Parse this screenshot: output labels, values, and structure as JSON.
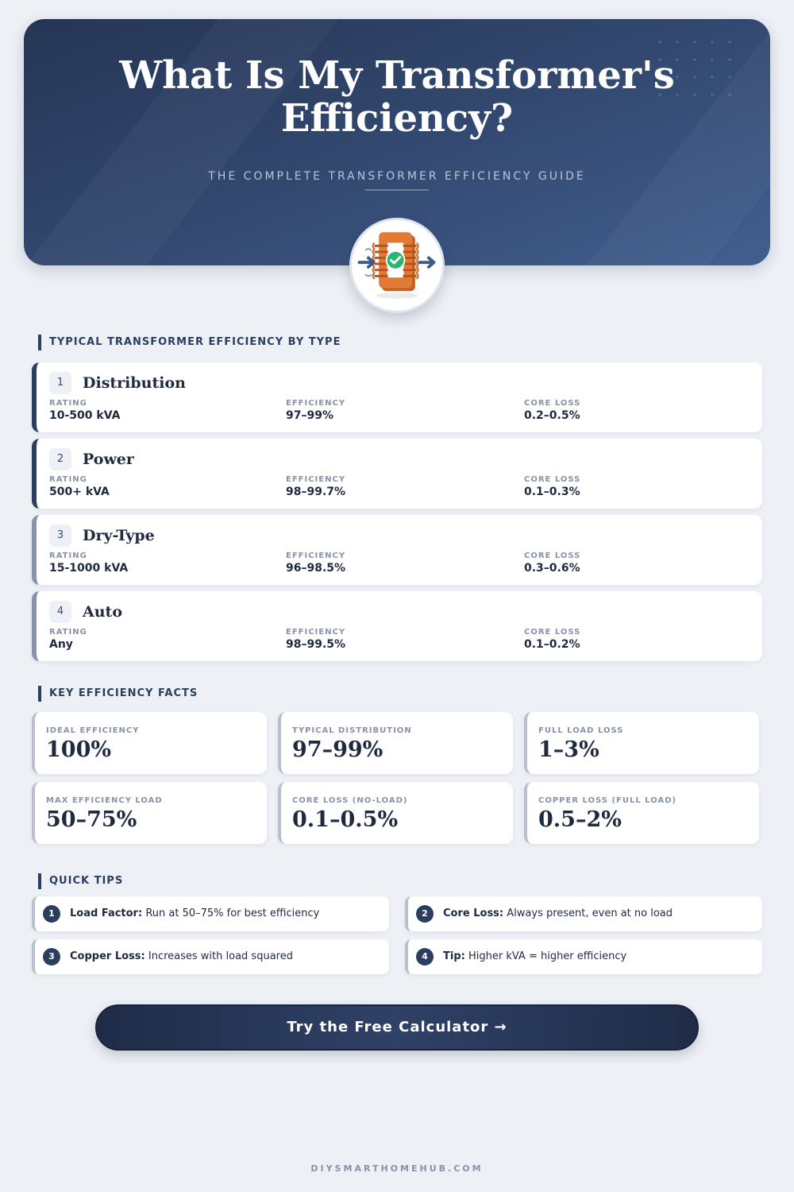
{
  "hero": {
    "title_line1": "What Is My Transformer's",
    "title_line2": "Efficiency?",
    "subtitle": "THE COMPLETE TRANSFORMER EFFICIENCY GUIDE",
    "icon": "transformer-check-icon"
  },
  "types_section": {
    "title": "TYPICAL TRANSFORMER EFFICIENCY BY TYPE",
    "stat_labels": {
      "rating": "RATING",
      "efficiency": "EFFICIENCY",
      "core_loss": "CORE LOSS"
    },
    "items": [
      {
        "num": "1",
        "name": "Distribution",
        "rating": "10-500 kVA",
        "efficiency": "97–99%",
        "core_loss": "0.2–0.5%"
      },
      {
        "num": "2",
        "name": "Power",
        "rating": "500+ kVA",
        "efficiency": "98–99.7%",
        "core_loss": "0.1–0.3%"
      },
      {
        "num": "3",
        "name": "Dry-Type",
        "rating": "15-1000 kVA",
        "efficiency": "96–98.5%",
        "core_loss": "0.3–0.6%"
      },
      {
        "num": "4",
        "name": "Auto",
        "rating": "Any",
        "efficiency": "98–99.5%",
        "core_loss": "0.1–0.2%"
      }
    ]
  },
  "facts_section": {
    "title": "KEY EFFICIENCY FACTS",
    "items": [
      {
        "label": "IDEAL EFFICIENCY",
        "value": "100%"
      },
      {
        "label": "TYPICAL DISTRIBUTION",
        "value": "97–99%"
      },
      {
        "label": "FULL LOAD LOSS",
        "value": "1–3%"
      },
      {
        "label": "MAX EFFICIENCY LOAD",
        "value": "50–75%"
      },
      {
        "label": "CORE LOSS (NO-LOAD)",
        "value": "0.1–0.5%"
      },
      {
        "label": "COPPER LOSS (FULL LOAD)",
        "value": "0.5–2%"
      }
    ]
  },
  "tips_section": {
    "title": "QUICK TIPS",
    "items": [
      {
        "num": "1",
        "label": "Load Factor:",
        "text": "Run at 50–75% for best efficiency"
      },
      {
        "num": "2",
        "label": "Core Loss:",
        "text": "Always present, even at no load"
      },
      {
        "num": "3",
        "label": "Copper Loss:",
        "text": "Increases with load squared"
      },
      {
        "num": "4",
        "label": "Tip:",
        "text": "Higher kVA = higher efficiency"
      }
    ]
  },
  "cta": {
    "label": "Try the Free Calculator →"
  },
  "footer": {
    "text": "DIYSMARTHOMEHUB.COM"
  },
  "colors": {
    "accent": "#2c3e60",
    "background": "#edf0f5",
    "copper": "#e07a35",
    "check": "#2bb673"
  }
}
